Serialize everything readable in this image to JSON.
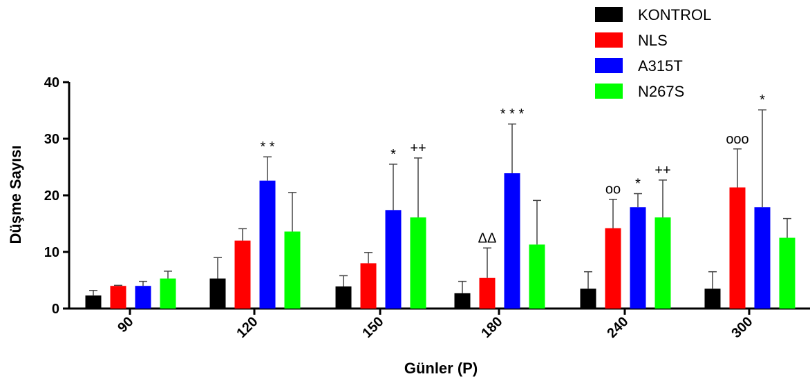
{
  "chart_data": {
    "type": "bar",
    "xlabel": "Günler (P)",
    "ylabel": "Düşme Sayısı",
    "ylim": [
      0,
      40
    ],
    "yticks": [
      0,
      10,
      20,
      30,
      40
    ],
    "grid": false,
    "legend_position": "top-right",
    "categories": [
      "90",
      "120",
      "150",
      "180",
      "240",
      "300"
    ],
    "series": [
      {
        "name": "KONTROL",
        "color": "#000000",
        "values": [
          2.3,
          5.3,
          3.9,
          2.7,
          3.5,
          3.5
        ],
        "errors": [
          0.9,
          3.7,
          1.9,
          2.1,
          3.0,
          3.0
        ]
      },
      {
        "name": "NLS",
        "color": "#ff0000",
        "values": [
          4.0,
          12.0,
          8.0,
          5.4,
          14.2,
          21.4
        ],
        "errors": [
          0.1,
          2.1,
          1.9,
          5.3,
          5.1,
          6.8
        ]
      },
      {
        "name": "A315T",
        "color": "#0000ff",
        "values": [
          4.0,
          22.6,
          17.4,
          23.9,
          17.9,
          17.9
        ],
        "errors": [
          0.8,
          4.2,
          8.1,
          8.7,
          2.4,
          17.2
        ]
      },
      {
        "name": "N267S",
        "color": "#00ff00",
        "values": [
          5.3,
          13.6,
          16.1,
          11.3,
          16.1,
          12.5
        ],
        "errors": [
          1.3,
          6.9,
          10.5,
          7.8,
          6.6,
          3.4
        ]
      }
    ],
    "annotations": [
      {
        "category": "120",
        "series": "A315T",
        "text": "* *"
      },
      {
        "category": "150",
        "series": "A315T",
        "text": "*"
      },
      {
        "category": "150",
        "series": "N267S",
        "text": "++"
      },
      {
        "category": "180",
        "series": "NLS",
        "text": "ΔΔ"
      },
      {
        "category": "180",
        "series": "A315T",
        "text": "* * *"
      },
      {
        "category": "240",
        "series": "NLS",
        "text": "oo"
      },
      {
        "category": "240",
        "series": "A315T",
        "text": "*"
      },
      {
        "category": "240",
        "series": "N267S",
        "text": "++"
      },
      {
        "category": "300",
        "series": "NLS",
        "text": "ooo"
      },
      {
        "category": "300",
        "series": "A315T",
        "text": "*"
      }
    ]
  }
}
